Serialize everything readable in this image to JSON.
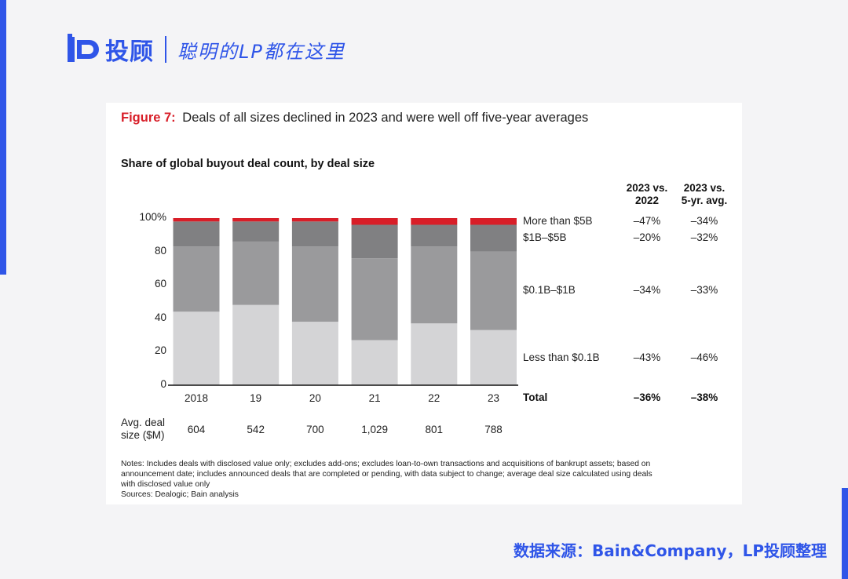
{
  "header": {
    "logo_text": "投顾",
    "slogan": "聪明的LP都在这里"
  },
  "footer": {
    "source": "数据来源：Bain&Company，LP投顾整理"
  },
  "colors": {
    "brand_blue": "#2f55e8",
    "figure_red": "#d81e28",
    "seg_lt01": "#d4d4d6",
    "seg_01_1": "#9a9a9c",
    "seg_1_5": "#808082",
    "seg_gt5": "#d81e28"
  },
  "figure": {
    "label": "Figure 7:",
    "caption": "Deals of all sizes declined in 2023 and were well off five-year averages"
  },
  "chart_data": {
    "type": "bar",
    "stacked": true,
    "title": "Share of global buyout deal count, by deal size",
    "categories": [
      "2018",
      "19",
      "20",
      "21",
      "22",
      "23"
    ],
    "y_ticks": [
      "100%",
      "80",
      "60",
      "40",
      "20",
      "0"
    ],
    "ylim": [
      0,
      100
    ],
    "series": [
      {
        "name": "Less than $0.1B",
        "values": [
          44,
          48,
          38,
          27,
          37,
          33
        ],
        "vs_2022": "–43%",
        "vs_5yr": "–46%"
      },
      {
        "name": "$0.1B–$1B",
        "values": [
          39,
          38,
          45,
          49,
          46,
          47
        ],
        "vs_2022": "–34%",
        "vs_5yr": "–33%"
      },
      {
        "name": "$1B–$5B",
        "values": [
          15,
          12,
          15,
          20,
          13,
          16
        ],
        "vs_2022": "–20%",
        "vs_5yr": "–32%"
      },
      {
        "name": "More than $5B",
        "values": [
          2,
          2,
          2,
          4,
          4,
          4
        ],
        "vs_2022": "–47%",
        "vs_5yr": "–34%"
      }
    ],
    "table_headers": {
      "vs_2022": [
        "2023 vs.",
        "2022"
      ],
      "vs_5yr": [
        "2023 vs.",
        "5-yr. avg."
      ]
    },
    "total": {
      "label": "Total",
      "vs_2022": "–36%",
      "vs_5yr": "–38%"
    },
    "avg_deal": {
      "label": [
        "Avg. deal",
        "size ($M)"
      ],
      "values": [
        "604",
        "542",
        "700",
        "1,029",
        "801",
        "788"
      ]
    },
    "notes": [
      "Notes: Includes deals with disclosed value only; excludes add-ons; excludes loan-to-own transactions and acquisitions of bankrupt assets; based on",
      "announcement date; includes announced deals that are completed or pending, with data subject to change; average deal size calculated using deals",
      "with disclosed value only"
    ],
    "sources": "Sources: Dealogic; Bain analysis"
  }
}
